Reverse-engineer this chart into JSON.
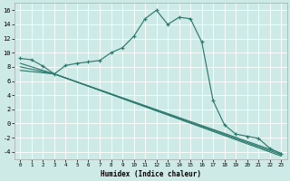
{
  "xlabel": "Humidex (Indice chaleur)",
  "bg_color": "#ceeae6",
  "line_color": "#2d7a6e",
  "grid_color": "#b0d8d4",
  "xlim": [
    -0.5,
    23.5
  ],
  "ylim": [
    -5.0,
    17.0
  ],
  "yticks": [
    -4,
    -2,
    0,
    2,
    4,
    6,
    8,
    10,
    12,
    14,
    16
  ],
  "xticks": [
    0,
    1,
    2,
    3,
    4,
    5,
    6,
    7,
    8,
    9,
    10,
    11,
    12,
    13,
    14,
    15,
    16,
    17,
    18,
    19,
    20,
    21,
    22,
    23
  ],
  "curve1_x": [
    0,
    1,
    2,
    3,
    4,
    5,
    6,
    7,
    8,
    9,
    10,
    11,
    12,
    13,
    14,
    15,
    16,
    17,
    18,
    19,
    20,
    21,
    22,
    23
  ],
  "curve1_y": [
    9.2,
    9.0,
    8.1,
    7.0,
    8.2,
    8.5,
    8.7,
    8.9,
    10.0,
    10.7,
    12.3,
    14.8,
    16.0,
    14.0,
    15.0,
    14.8,
    11.5,
    3.2,
    -0.2,
    -1.5,
    -1.8,
    -2.1,
    -3.5,
    -4.3
  ],
  "curve2_x": [
    0,
    3,
    23
  ],
  "curve2_y": [
    8.5,
    7.0,
    -4.2
  ],
  "curve3_x": [
    0,
    3,
    23
  ],
  "curve3_y": [
    8.0,
    7.0,
    -4.4
  ],
  "curve4_x": [
    0,
    3,
    23
  ],
  "curve4_y": [
    7.5,
    7.0,
    -4.6
  ]
}
